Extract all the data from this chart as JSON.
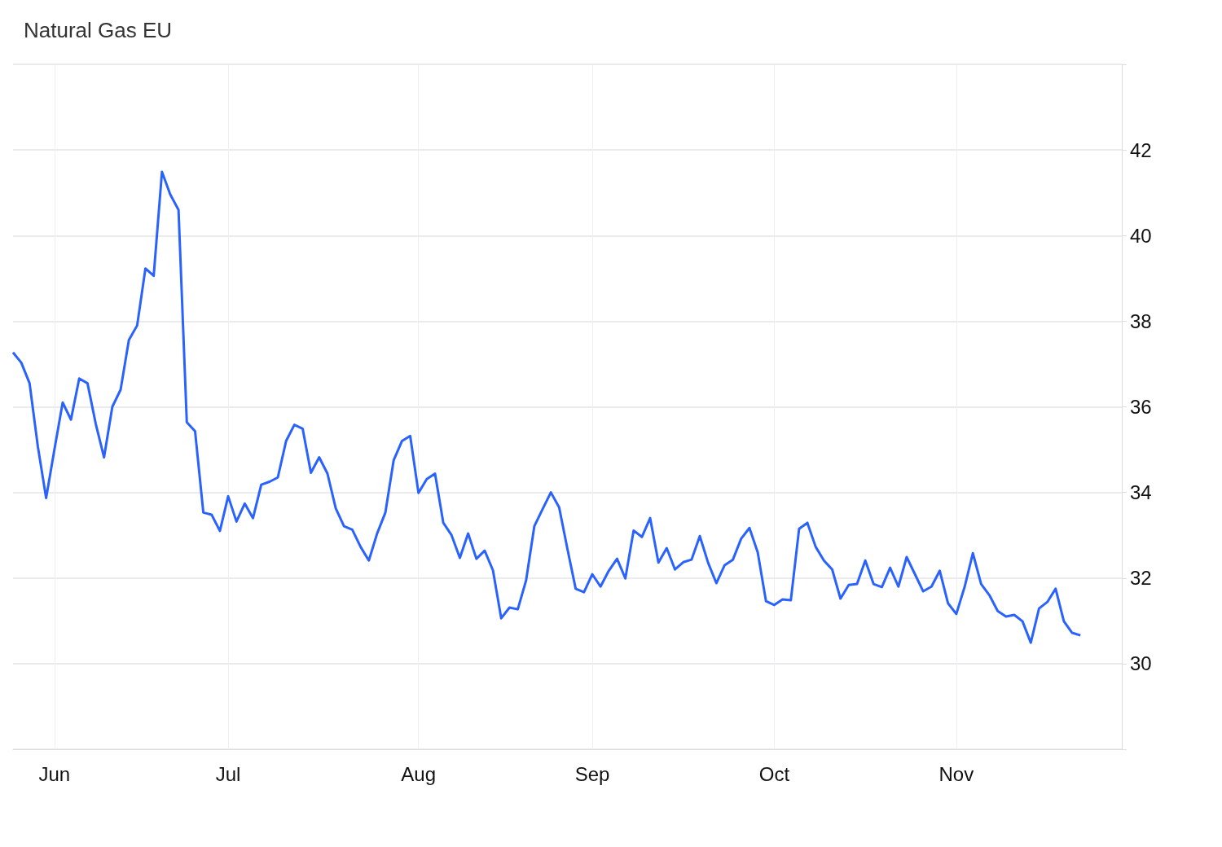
{
  "chart_data": {
    "type": "line",
    "title": "Natural Gas EU",
    "categories": [
      null,
      null,
      null,
      null,
      null,
      "Jun",
      null,
      null,
      null,
      null,
      null,
      null,
      null,
      null,
      null,
      null,
      null,
      null,
      null,
      null,
      null,
      null,
      null,
      null,
      null,
      null,
      "Jul",
      null,
      null,
      null,
      null,
      null,
      null,
      null,
      null,
      null,
      null,
      null,
      null,
      null,
      null,
      null,
      null,
      null,
      null,
      null,
      null,
      null,
      null,
      "Aug",
      null,
      null,
      null,
      null,
      null,
      null,
      null,
      null,
      null,
      null,
      null,
      null,
      null,
      null,
      null,
      null,
      null,
      null,
      null,
      null,
      "Sep",
      null,
      null,
      null,
      null,
      null,
      null,
      null,
      null,
      null,
      null,
      null,
      null,
      null,
      null,
      null,
      null,
      null,
      null,
      null,
      null,
      null,
      "Oct",
      null,
      null,
      null,
      null,
      null,
      null,
      null,
      null,
      null,
      null,
      null,
      null,
      null,
      null,
      null,
      null,
      null,
      null,
      null,
      null,
      null,
      "Nov",
      null,
      null,
      null,
      null,
      null,
      null,
      null,
      null,
      null,
      null,
      null,
      null,
      null,
      null,
      null,
      null,
      null,
      null,
      null,
      null
    ],
    "series": [
      {
        "color": "#2962ff",
        "values": [
          37.27,
          37.03,
          36.55,
          35.07,
          33.87,
          35.0,
          36.1,
          35.7,
          36.66,
          36.55,
          35.6,
          34.82,
          36.0,
          36.4,
          37.56,
          37.9,
          39.23,
          39.06,
          41.49,
          40.96,
          40.6,
          35.64,
          35.43,
          33.53,
          33.48,
          33.1,
          33.91,
          33.32,
          33.74,
          33.4,
          34.18,
          34.25,
          34.35,
          35.2,
          35.58,
          35.49,
          34.46,
          34.82,
          34.44,
          33.63,
          33.21,
          33.13,
          32.73,
          32.41,
          33.04,
          33.53,
          34.75,
          35.2,
          35.32,
          33.99,
          34.31,
          34.44,
          33.29,
          33.0,
          32.47,
          33.04,
          32.45,
          32.64,
          32.18,
          31.06,
          31.31,
          31.27,
          31.94,
          33.21,
          33.61,
          34.0,
          33.65,
          32.68,
          31.75,
          31.67,
          32.09,
          31.8,
          32.17,
          32.45,
          31.99,
          33.11,
          32.96,
          33.4,
          32.36,
          32.7,
          32.2,
          32.37,
          32.43,
          32.98,
          32.36,
          31.88,
          32.3,
          32.43,
          32.92,
          33.17,
          32.6,
          31.46,
          31.37,
          31.5,
          31.48,
          33.15,
          33.29,
          32.73,
          32.41,
          32.2,
          31.52,
          31.84,
          31.86,
          32.41,
          31.86,
          31.79,
          32.24,
          31.8,
          32.49,
          32.09,
          31.69,
          31.8,
          32.17,
          31.41,
          31.16,
          31.79,
          32.58,
          31.86,
          31.6,
          31.23,
          31.1,
          31.14,
          30.99,
          30.49,
          31.29,
          31.44,
          31.75,
          30.99,
          30.72,
          30.66,
          null,
          null,
          null,
          null,
          null
        ]
      }
    ],
    "ylim": [
      28,
      44
    ],
    "yticks": [
      30,
      32,
      34,
      36,
      38,
      40,
      42
    ],
    "grid": true,
    "marker": "none",
    "line_style": "solid"
  }
}
